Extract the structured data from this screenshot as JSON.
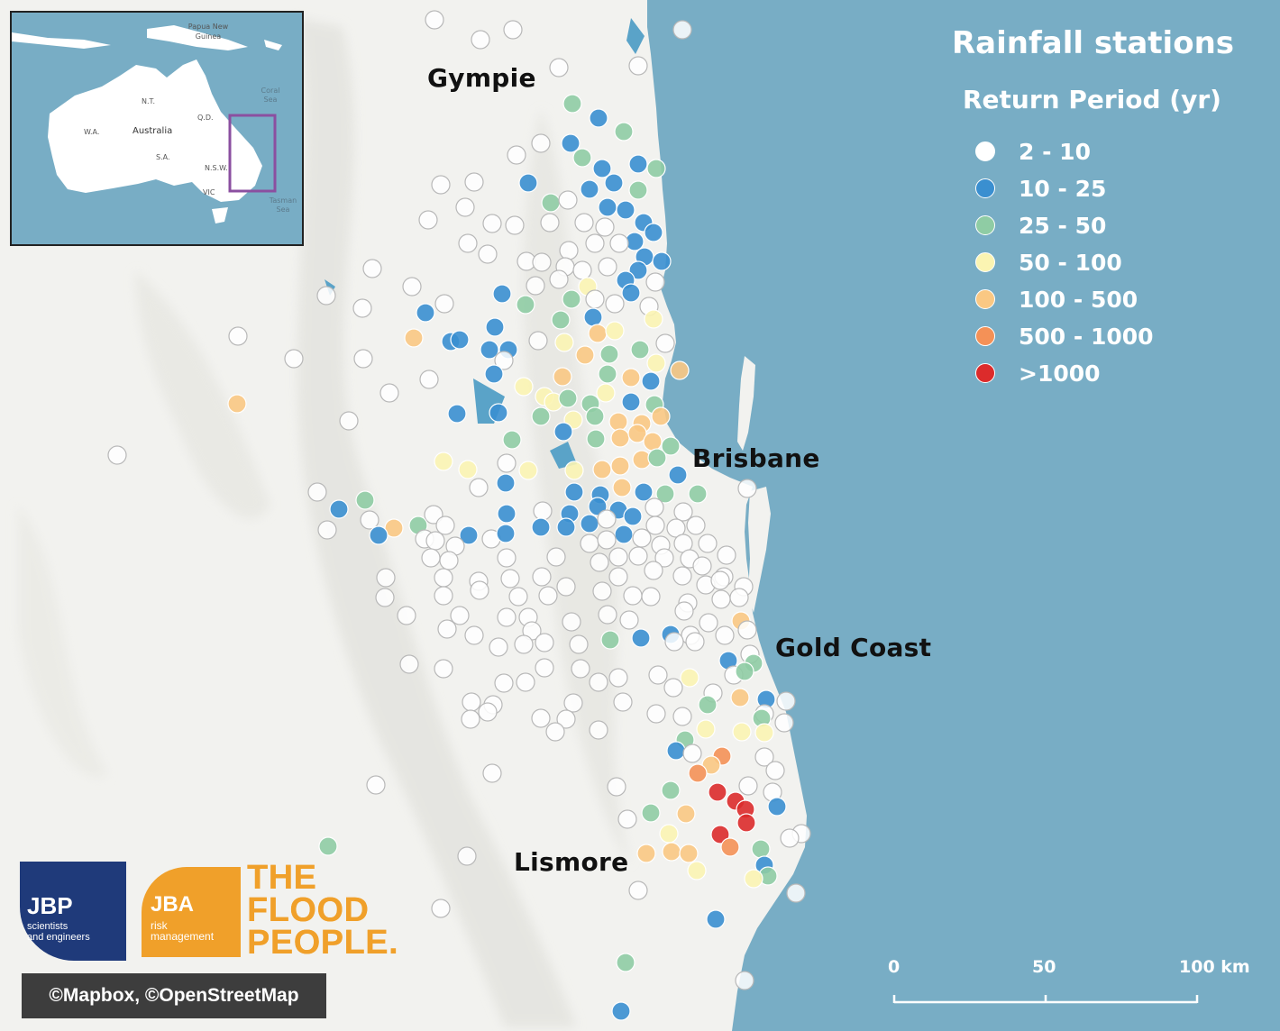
{
  "map": {
    "cities": [
      "Gympie",
      "Brisbane",
      "Gold Coast",
      "Lismore"
    ],
    "legend": {
      "title": "Rainfall stations",
      "subtitle": "Return Period (yr)",
      "classes": [
        {
          "label": "2 - 10",
          "color": "#ffffff"
        },
        {
          "label": "10 - 25",
          "color": "#3a8fd0"
        },
        {
          "label": "25 - 50",
          "color": "#8fcca4"
        },
        {
          "label": "50 - 100",
          "color": "#fbf4b2"
        },
        {
          "label": "100 - 500",
          "color": "#fac883"
        },
        {
          "label": "500 - 1000",
          "color": "#f49157"
        },
        {
          "label": ">1000",
          "color": "#dc2b2b"
        }
      ]
    },
    "scale_bar": {
      "ticks": [
        "0",
        "50",
        "100 km"
      ]
    },
    "inset": {
      "labels": [
        "Papua New Guinea",
        "Coral Sea",
        "Australia",
        "W.A.",
        "N.T.",
        "Q.D.",
        "S.A.",
        "N.S.W.",
        "VIC",
        "Tasman Sea"
      ],
      "highlight_color": "#8b4fa0"
    },
    "attribution": "©Mapbox, ©OpenStreetMap",
    "logos": {
      "jbp": {
        "name": "JBP",
        "tagline": [
          "scientists",
          "and engineers"
        ]
      },
      "jba": {
        "name": "JBA",
        "tagline": [
          "risk",
          "management"
        ]
      },
      "flood_people": [
        "THE",
        "FLOOD",
        "PEOPLE."
      ]
    },
    "colors": {
      "ocean": "#78adc5",
      "land": "#f2f2ef",
      "inset_border": "#222222"
    }
  }
}
